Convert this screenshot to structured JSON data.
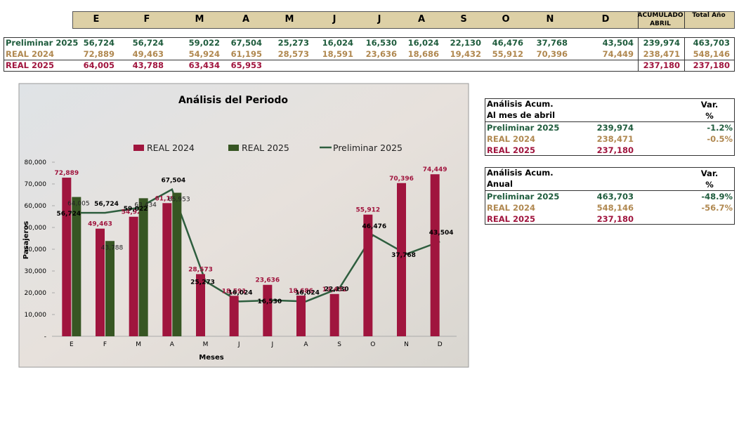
{
  "table": {
    "headers": [
      "E",
      "F",
      "M",
      "A",
      "M",
      "J",
      "J",
      "A",
      "S",
      "O",
      "N",
      "D",
      "ACUMULADO ABRIL",
      "Total Año"
    ],
    "rows": [
      {
        "label": "Preliminar 2025",
        "values": [
          "56,724",
          "56,724",
          "59,022",
          "67,504",
          "25,273",
          "16,024",
          "16,530",
          "16,024",
          "22,130",
          "46,476",
          "37,768",
          "43,504",
          "239,974",
          "463,703"
        ]
      },
      {
        "label": "REAL 2024",
        "values": [
          "72,889",
          "49,463",
          "54,924",
          "61,195",
          "28,573",
          "18,591",
          "23,636",
          "18,686",
          "19,432",
          "55,912",
          "70,396",
          "74,449",
          "238,471",
          "548,146"
        ]
      },
      {
        "label": "REAL 2025",
        "values": [
          "64,005",
          "43,788",
          "63,434",
          "65,953",
          null,
          null,
          null,
          null,
          null,
          null,
          null,
          null,
          "237,180",
          "237,180"
        ]
      }
    ]
  },
  "chart_data": {
    "type": "bar",
    "title": "Análisis del Periodo",
    "x_label": "Meses",
    "y_label": "Pasajeros",
    "categories": [
      "E",
      "F",
      "M",
      "A",
      "M",
      "J",
      "J",
      "A",
      "S",
      "O",
      "N",
      "D"
    ],
    "ylim": [
      0,
      80000
    ],
    "yticks": [
      {
        "value": 0,
        "label": "-"
      },
      {
        "value": 10000,
        "label": "10,000"
      },
      {
        "value": 20000,
        "label": "20,000"
      },
      {
        "value": 30000,
        "label": "30,000"
      },
      {
        "value": 40000,
        "label": "40,000"
      },
      {
        "value": 50000,
        "label": "50,000"
      },
      {
        "value": 60000,
        "label": "60,000"
      },
      {
        "value": 70000,
        "label": "70,000"
      },
      {
        "value": 80000,
        "label": "80,000"
      }
    ],
    "series": [
      {
        "name": "REAL 2024",
        "type": "bar",
        "color": "#a0153e",
        "values": [
          72889,
          49463,
          54924,
          61195,
          28573,
          18591,
          23636,
          18686,
          19432,
          55912,
          70396,
          74449
        ],
        "value_labels": [
          "72,889",
          "49,463",
          "54,924",
          "61,195",
          "28,573",
          "18,591",
          "23,636",
          "18,686",
          "19,432",
          "55,912",
          "70,396",
          "74,449"
        ]
      },
      {
        "name": "REAL 2025",
        "type": "bar",
        "color": "#375623",
        "values": [
          64005,
          43788,
          63434,
          65953,
          null,
          null,
          null,
          null,
          null,
          null,
          null,
          null
        ],
        "value_labels": [
          "64,005",
          "43,788",
          "63,434",
          "65,953",
          null,
          null,
          null,
          null,
          null,
          null,
          null,
          null
        ]
      },
      {
        "name": "Preliminar 2025",
        "type": "line",
        "color": "#2e5e3e",
        "values": [
          56724,
          56724,
          59022,
          67504,
          25273,
          16024,
          16530,
          16024,
          22130,
          46476,
          37768,
          43504
        ],
        "value_labels": [
          "56,724",
          "56,724",
          "59,022",
          "67,504",
          "25,273",
          "16,024",
          "16,530",
          "16,024",
          "22,130",
          "46,476",
          "37,768",
          "43,504"
        ]
      }
    ]
  },
  "analysis": [
    {
      "title": "Análisis  Acum.",
      "subtitle": "Al mes de abril",
      "var_header": "Var.",
      "var_unit": "%",
      "rows": [
        {
          "label": "Preliminar 2025",
          "value": "239,974",
          "var": "-1.2%"
        },
        {
          "label": "REAL 2024",
          "value": "238,471",
          "var": "-0.5%"
        },
        {
          "label": "REAL 2025",
          "value": "237,180",
          "var": null
        }
      ]
    },
    {
      "title": "Análisis  Acum.",
      "subtitle": "Anual",
      "var_header": "Var.",
      "var_unit": "%",
      "rows": [
        {
          "label": "Preliminar 2025",
          "value": "463,703",
          "var": "-48.9%"
        },
        {
          "label": "REAL 2024",
          "value": "548,146",
          "var": "-56.7%"
        },
        {
          "label": "REAL 2025",
          "value": "237,180",
          "var": null
        }
      ]
    }
  ]
}
